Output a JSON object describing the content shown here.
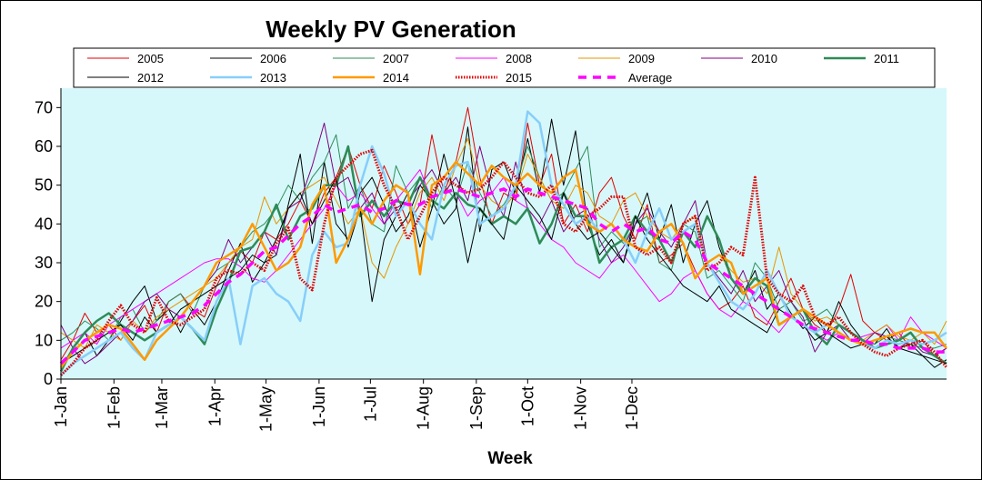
{
  "chart_data": {
    "type": "line",
    "title": "Weekly PV Generation",
    "xlabel": "Week",
    "ylabel": "",
    "ylim": [
      0,
      75
    ],
    "yticks": [
      0,
      10,
      20,
      30,
      40,
      50,
      60,
      70
    ],
    "x_tick_labels": [
      "1-Jan",
      "1-Feb",
      "1-Mar",
      "1-Apr",
      "1-May",
      "1-Jun",
      "1-Jul",
      "1-Aug",
      "1-Sep",
      "1-Oct",
      "1-Nov",
      "1-Dec"
    ],
    "x_tick_weeks": [
      0,
      4.43,
      8.43,
      12.86,
      17.14,
      21.57,
      25.86,
      30.29,
      34.71,
      39,
      43.43,
      47.71
    ],
    "legend_position": "top",
    "background_color": "#d6f8fa",
    "series": [
      {
        "name": "2005",
        "color": "#e00000",
        "width": 1,
        "dash": "",
        "values": [
          5,
          10,
          17,
          12,
          14,
          10,
          15,
          19,
          12,
          20,
          22,
          18,
          16,
          24,
          30,
          33,
          30,
          38,
          36,
          40,
          46,
          40,
          48,
          52,
          60,
          50,
          44,
          55,
          48,
          40,
          45,
          63,
          48,
          56,
          70,
          52,
          40,
          48,
          46,
          66,
          50,
          58,
          40,
          45,
          38,
          48,
          52,
          42,
          36,
          45,
          30,
          32,
          35,
          28,
          22,
          18,
          20,
          24,
          16,
          14,
          20,
          26,
          18,
          14,
          12,
          18,
          27,
          15,
          12,
          10,
          12,
          8,
          10,
          6,
          8
        ]
      },
      {
        "name": "2006",
        "color": "#000000",
        "width": 1,
        "dash": "",
        "values": [
          3,
          8,
          12,
          6,
          10,
          15,
          20,
          24,
          15,
          18,
          12,
          18,
          14,
          20,
          28,
          35,
          25,
          30,
          32,
          45,
          58,
          35,
          56,
          40,
          36,
          48,
          52,
          45,
          38,
          42,
          50,
          46,
          40,
          44,
          65,
          38,
          54,
          56,
          48,
          62,
          48,
          67,
          50,
          64,
          40,
          32,
          36,
          30,
          40,
          48,
          36,
          45,
          30,
          40,
          46,
          34,
          26,
          22,
          28,
          18,
          22,
          17,
          13,
          16,
          12,
          20,
          14,
          10,
          9,
          13,
          8,
          9,
          6,
          3,
          5
        ]
      },
      {
        "name": "2007",
        "color": "#2e8b57",
        "width": 1,
        "dash": "",
        "values": [
          10,
          12,
          15,
          13,
          10,
          16,
          18,
          12,
          15,
          20,
          22,
          17,
          24,
          28,
          30,
          34,
          38,
          40,
          44,
          50,
          46,
          52,
          56,
          63,
          44,
          50,
          40,
          38,
          55,
          48,
          52,
          44,
          50,
          46,
          56,
          48,
          42,
          45,
          50,
          60,
          52,
          46,
          48,
          54,
          60,
          34,
          38,
          35,
          40,
          42,
          30,
          28,
          40,
          38,
          26,
          28,
          24,
          20,
          30,
          26,
          18,
          20,
          15,
          16,
          18,
          14,
          12,
          10,
          9,
          11,
          10,
          9,
          8,
          8,
          9
        ]
      },
      {
        "name": "2008",
        "color": "#ff00ff",
        "width": 1,
        "dash": "",
        "values": [
          8,
          10,
          12,
          9,
          14,
          16,
          18,
          20,
          22,
          24,
          26,
          28,
          30,
          31,
          31,
          29,
          26,
          25,
          28,
          32,
          36,
          40,
          44,
          50,
          46,
          48,
          44,
          40,
          46,
          50,
          54,
          46,
          44,
          48,
          42,
          46,
          48,
          52,
          46,
          44,
          40,
          36,
          34,
          30,
          28,
          26,
          30,
          32,
          28,
          24,
          20,
          22,
          26,
          28,
          22,
          18,
          16,
          20,
          18,
          15,
          12,
          16,
          14,
          12,
          10,
          12,
          10,
          11,
          12,
          14,
          10,
          16,
          12,
          10,
          8
        ]
      },
      {
        "name": "2009",
        "color": "#e69500",
        "width": 1,
        "dash": "",
        "values": [
          12,
          10,
          8,
          14,
          12,
          10,
          15,
          12,
          16,
          18,
          20,
          22,
          24,
          26,
          30,
          34,
          36,
          47,
          40,
          44,
          48,
          50,
          52,
          46,
          40,
          44,
          30,
          26,
          34,
          40,
          48,
          52,
          46,
          55,
          62,
          50,
          46,
          44,
          48,
          58,
          52,
          46,
          44,
          50,
          48,
          42,
          40,
          46,
          48,
          42,
          38,
          36,
          40,
          42,
          30,
          32,
          28,
          25,
          26,
          22,
          34,
          22,
          18,
          15,
          16,
          14,
          12,
          10,
          12,
          14,
          11,
          10,
          12,
          9,
          15
        ]
      },
      {
        "name": "2010",
        "color": "#800080",
        "width": 1,
        "dash": "",
        "values": [
          14,
          8,
          4,
          6,
          9,
          12,
          15,
          20,
          22,
          18,
          16,
          20,
          24,
          28,
          36,
          30,
          34,
          38,
          32,
          44,
          46,
          55,
          66,
          50,
          52,
          44,
          48,
          40,
          44,
          46,
          50,
          54,
          48,
          52,
          46,
          60,
          48,
          42,
          56,
          44,
          40,
          46,
          38,
          42,
          44,
          36,
          30,
          34,
          40,
          44,
          38,
          34,
          40,
          46,
          30,
          26,
          22,
          28,
          20,
          24,
          28,
          20,
          16,
          7,
          12,
          14,
          10,
          9,
          12,
          11,
          8,
          10,
          7,
          6,
          8
        ]
      },
      {
        "name": "2011",
        "color": "#2e8b57",
        "width": 2.5,
        "dash": "",
        "values": [
          2,
          8,
          12,
          15,
          17,
          14,
          12,
          10,
          12,
          14,
          16,
          13,
          9,
          18,
          25,
          33,
          34,
          38,
          45,
          36,
          42,
          44,
          50,
          50,
          60,
          42,
          46,
          42,
          46,
          45,
          52,
          46,
          44,
          48,
          45,
          44,
          40,
          42,
          40,
          44,
          35,
          40,
          48,
          42,
          42,
          30,
          34,
          36,
          42,
          38,
          36,
          30,
          38,
          34,
          42,
          36,
          26,
          22,
          26,
          24,
          14,
          16,
          18,
          12,
          9,
          14,
          12,
          10,
          8,
          9,
          10,
          12,
          8,
          6,
          4
        ]
      },
      {
        "name": "2012",
        "color": "#000000",
        "width": 1,
        "dash": "",
        "values": [
          4,
          6,
          8,
          10,
          12,
          14,
          10,
          16,
          12,
          14,
          18,
          20,
          22,
          24,
          26,
          28,
          32,
          30,
          36,
          44,
          48,
          40,
          46,
          52,
          34,
          44,
          20,
          36,
          42,
          48,
          34,
          44,
          58,
          46,
          30,
          44,
          40,
          36,
          50,
          46,
          42,
          36,
          48,
          40,
          36,
          38,
          34,
          30,
          42,
          36,
          32,
          28,
          24,
          22,
          20,
          24,
          18,
          16,
          14,
          12,
          18,
          16,
          14,
          10,
          12,
          10,
          8,
          9,
          10,
          11,
          8,
          7,
          6,
          5,
          4
        ]
      },
      {
        "name": "2013",
        "color": "#87cefa",
        "width": 2.5,
        "dash": "",
        "values": [
          1,
          4,
          6,
          8,
          10,
          12,
          8,
          5,
          12,
          14,
          16,
          13,
          10,
          20,
          26,
          9,
          24,
          26,
          22,
          20,
          15,
          32,
          38,
          34,
          35,
          50,
          60,
          53,
          42,
          46,
          40,
          36,
          50,
          55,
          56,
          40,
          42,
          44,
          50,
          69,
          66,
          50,
          45,
          40,
          42,
          38,
          40,
          36,
          30,
          38,
          44,
          36,
          38,
          40,
          30,
          25,
          20,
          18,
          22,
          28,
          22,
          16,
          14,
          12,
          14,
          12,
          10,
          9,
          8,
          10,
          9,
          10,
          9,
          10,
          12
        ]
      },
      {
        "name": "2014",
        "color": "#ff9900",
        "width": 2.5,
        "dash": "",
        "values": [
          3,
          7,
          10,
          12,
          14,
          13,
          9,
          5,
          10,
          13,
          16,
          20,
          24,
          30,
          32,
          34,
          40,
          34,
          28,
          30,
          34,
          45,
          50,
          30,
          36,
          44,
          40,
          46,
          50,
          48,
          27,
          50,
          52,
          56,
          53,
          50,
          55,
          52,
          50,
          53,
          50,
          48,
          52,
          54,
          40,
          38,
          40,
          36,
          34,
          33,
          38,
          40,
          35,
          26,
          30,
          32,
          30,
          22,
          24,
          26,
          14,
          16,
          18,
          16,
          14,
          12,
          10,
          9,
          10,
          11,
          12,
          13,
          12,
          12,
          8
        ]
      },
      {
        "name": "2015",
        "color": "#e00000",
        "width": 3,
        "dash": "1.5,1.5",
        "values": [
          1,
          4,
          8,
          10,
          15,
          19,
          14,
          12,
          21,
          15,
          14,
          16,
          18,
          26,
          28,
          27,
          30,
          28,
          35,
          39,
          26,
          23,
          40,
          52,
          55,
          58,
          59,
          50,
          44,
          36,
          42,
          48,
          52,
          50,
          48,
          49,
          52,
          56,
          52,
          48,
          47,
          50,
          40,
          38,
          42,
          44,
          47,
          47,
          34,
          32,
          34,
          30,
          40,
          42,
          28,
          30,
          34,
          32,
          52,
          26,
          22,
          20,
          24,
          16,
          14,
          16,
          12,
          9,
          7,
          6,
          8,
          9,
          10,
          7,
          3
        ]
      },
      {
        "name": "Average",
        "color": "#ff00ff",
        "width": 3.5,
        "dash": "9,7",
        "values": [
          4,
          7,
          10,
          11,
          12,
          13,
          12,
          13,
          14,
          15,
          16,
          17,
          19,
          22,
          25,
          27,
          30,
          33,
          34,
          37,
          40,
          42,
          45,
          43,
          44,
          45,
          43,
          44,
          46,
          45,
          45,
          47,
          48,
          49,
          48,
          47,
          48,
          49,
          47,
          49,
          48,
          47,
          46,
          45,
          44,
          40,
          38,
          40,
          38,
          39,
          36,
          35,
          38,
          36,
          30,
          28,
          26,
          24,
          22,
          20,
          18,
          16,
          14,
          13,
          12,
          11,
          10,
          10,
          9,
          9,
          8,
          8,
          8,
          7,
          7
        ]
      }
    ]
  }
}
